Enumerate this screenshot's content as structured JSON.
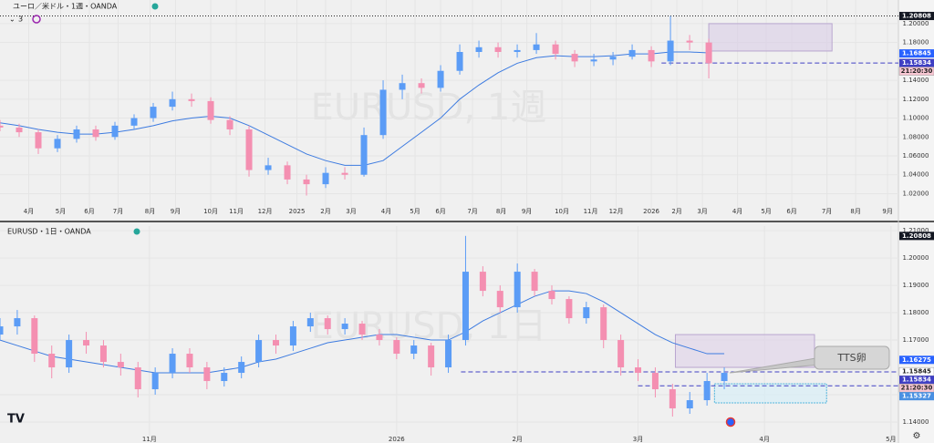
{
  "chart_data": [
    {
      "type": "candlestick",
      "title": "ユーロ／米ドル・1週・OANDA",
      "subtitle": "3",
      "watermark": "EURUSD, 1週",
      "up_color": "#5b9cf6",
      "down_color": "#f48fb1",
      "x": [
        0,
        3,
        6,
        9,
        12,
        15,
        18,
        21,
        24,
        27,
        30,
        33,
        36,
        39,
        42,
        45,
        48,
        51,
        54,
        57,
        60,
        63,
        66,
        69,
        72,
        75,
        78,
        81,
        84,
        87,
        90,
        93,
        96,
        99,
        102,
        105,
        108,
        111
      ],
      "ohlc": [
        [
          1.092,
          1.098,
          1.086,
          1.09
        ],
        [
          1.09,
          1.094,
          1.08,
          1.085
        ],
        [
          1.085,
          1.088,
          1.062,
          1.068
        ],
        [
          1.068,
          1.082,
          1.064,
          1.078
        ],
        [
          1.078,
          1.092,
          1.074,
          1.088
        ],
        [
          1.088,
          1.092,
          1.076,
          1.08
        ],
        [
          1.08,
          1.096,
          1.077,
          1.092
        ],
        [
          1.092,
          1.104,
          1.088,
          1.1
        ],
        [
          1.1,
          1.116,
          1.096,
          1.112
        ],
        [
          1.112,
          1.128,
          1.108,
          1.12
        ],
        [
          1.12,
          1.126,
          1.112,
          1.118
        ],
        [
          1.118,
          1.122,
          1.094,
          1.098
        ],
        [
          1.098,
          1.102,
          1.082,
          1.088
        ],
        [
          1.088,
          1.092,
          1.038,
          1.045
        ],
        [
          1.045,
          1.058,
          1.04,
          1.05
        ],
        [
          1.05,
          1.054,
          1.03,
          1.035
        ],
        [
          1.035,
          1.04,
          1.018,
          1.03
        ],
        [
          1.03,
          1.048,
          1.026,
          1.042
        ],
        [
          1.042,
          1.048,
          1.035,
          1.04
        ],
        [
          1.04,
          1.09,
          1.038,
          1.082
        ],
        [
          1.082,
          1.14,
          1.078,
          1.13
        ],
        [
          1.13,
          1.146,
          1.12,
          1.137
        ],
        [
          1.137,
          1.142,
          1.126,
          1.132
        ],
        [
          1.132,
          1.156,
          1.128,
          1.15
        ],
        [
          1.15,
          1.178,
          1.146,
          1.17
        ],
        [
          1.17,
          1.182,
          1.164,
          1.175
        ],
        [
          1.175,
          1.18,
          1.164,
          1.17
        ],
        [
          1.17,
          1.178,
          1.164,
          1.172
        ],
        [
          1.172,
          1.19,
          1.168,
          1.178
        ],
        [
          1.178,
          1.182,
          1.162,
          1.168
        ],
        [
          1.168,
          1.172,
          1.154,
          1.16
        ],
        [
          1.16,
          1.168,
          1.155,
          1.162
        ],
        [
          1.162,
          1.17,
          1.156,
          1.165
        ],
        [
          1.165,
          1.178,
          1.162,
          1.172
        ],
        [
          1.172,
          1.176,
          1.154,
          1.16
        ],
        [
          1.16,
          1.2081,
          1.156,
          1.182
        ],
        [
          1.182,
          1.188,
          1.172,
          1.18
        ],
        [
          1.18,
          1.184,
          1.142,
          1.158
        ]
      ],
      "ma": {
        "color": "#3d7be0",
        "values": [
          1.095,
          1.092,
          1.088,
          1.085,
          1.083,
          1.083,
          1.085,
          1.088,
          1.092,
          1.097,
          1.1,
          1.102,
          1.1,
          1.092,
          1.082,
          1.072,
          1.062,
          1.055,
          1.05,
          1.05,
          1.055,
          1.07,
          1.085,
          1.1,
          1.12,
          1.135,
          1.148,
          1.158,
          1.164,
          1.166,
          1.165,
          1.165,
          1.166,
          1.168,
          1.168,
          1.17,
          1.17,
          1.169
        ]
      },
      "xlim": [
        0,
        140.7
      ],
      "xticks": [
        {
          "value": 4.5,
          "label": "4月"
        },
        {
          "value": 9.5,
          "label": "5月"
        },
        {
          "value": 14,
          "label": "6月"
        },
        {
          "value": 18.5,
          "label": "7月"
        },
        {
          "value": 23.5,
          "label": "8月"
        },
        {
          "value": 27.5,
          "label": "9月"
        },
        {
          "value": 33,
          "label": "10月"
        },
        {
          "value": 37,
          "label": "11月"
        },
        {
          "value": 41.5,
          "label": "12月"
        },
        {
          "value": 46.5,
          "label": "2025"
        },
        {
          "value": 51,
          "label": "2月"
        },
        {
          "value": 55,
          "label": "3月"
        },
        {
          "value": 60.5,
          "label": "4月"
        },
        {
          "value": 65,
          "label": "5月"
        },
        {
          "value": 69,
          "label": "6月"
        },
        {
          "value": 74,
          "label": "7月"
        },
        {
          "value": 78.5,
          "label": "8月"
        },
        {
          "value": 82.5,
          "label": "9月"
        },
        {
          "value": 88,
          "label": "10月"
        },
        {
          "value": 92.5,
          "label": "11月"
        },
        {
          "value": 96.5,
          "label": "12月"
        },
        {
          "value": 102,
          "label": "2026"
        },
        {
          "value": 106,
          "label": "2月"
        },
        {
          "value": 110,
          "label": "3月"
        },
        {
          "value": 115.5,
          "label": "4月"
        },
        {
          "value": 120,
          "label": "5月"
        },
        {
          "value": 124,
          "label": "6月"
        },
        {
          "value": 129.5,
          "label": "7月"
        },
        {
          "value": 134,
          "label": "8月"
        },
        {
          "value": 139,
          "label": "9月"
        }
      ],
      "ylim": [
        1.005,
        1.225
      ],
      "yticks": [
        {
          "value": 1.2,
          "label": "1.20000"
        },
        {
          "value": 1.18,
          "label": "1.18000"
        },
        {
          "value": 1.14,
          "label": "1.14000"
        },
        {
          "value": 1.12,
          "label": "1.12000"
        },
        {
          "value": 1.1,
          "label": "1.10000"
        },
        {
          "value": 1.08,
          "label": "1.08000"
        },
        {
          "value": 1.06,
          "label": "1.06000"
        },
        {
          "value": 1.04,
          "label": "1.04000"
        },
        {
          "value": 1.02,
          "label": "1.02000"
        }
      ],
      "grid": true,
      "price_tags": [
        1.20808,
        1.16845,
        1.15834
      ],
      "price_tag_colors": [
        "#131722",
        "#2962ff",
        "#3f3fc4"
      ],
      "price_tag_lines": [
        "dotted",
        null,
        "dashed"
      ],
      "price_tag_line_from": [
        0,
        null,
        103.6
      ],
      "countdown": "21:20:30",
      "countdown_color": "#f7c6d2",
      "zones": [
        {
          "x": [
            111,
            130.3
          ],
          "y": [
            1.171,
            1.2
          ],
          "fill": "#d9cde6",
          "stroke": "#b9a6cf"
        }
      ]
    },
    {
      "type": "candlestick",
      "title": "EURUSD・1日・OANDA",
      "watermark": "EURUSD, 1日",
      "up_color": "#5b9cf6",
      "down_color": "#f48fb1",
      "x": [
        0,
        3,
        6,
        9,
        12,
        15,
        18,
        21,
        24,
        27,
        30,
        33,
        36,
        39,
        42,
        45,
        48,
        51,
        54,
        57,
        60,
        63,
        66,
        69,
        72,
        75,
        78,
        81,
        84,
        87,
        90,
        93,
        96,
        99,
        102,
        105,
        108,
        111,
        114,
        117,
        120,
        123,
        126
      ],
      "ohlc": [
        [
          1.172,
          1.178,
          1.17,
          1.175
        ],
        [
          1.175,
          1.181,
          1.172,
          1.178
        ],
        [
          1.178,
          1.179,
          1.162,
          1.165
        ],
        [
          1.165,
          1.168,
          1.156,
          1.16
        ],
        [
          1.16,
          1.172,
          1.158,
          1.17
        ],
        [
          1.17,
          1.173,
          1.165,
          1.168
        ],
        [
          1.168,
          1.17,
          1.16,
          1.162
        ],
        [
          1.162,
          1.165,
          1.157,
          1.16
        ],
        [
          1.16,
          1.162,
          1.149,
          1.152
        ],
        [
          1.152,
          1.16,
          1.15,
          1.158
        ],
        [
          1.158,
          1.167,
          1.156,
          1.165
        ],
        [
          1.165,
          1.167,
          1.158,
          1.16
        ],
        [
          1.16,
          1.162,
          1.152,
          1.155
        ],
        [
          1.155,
          1.16,
          1.153,
          1.158
        ],
        [
          1.158,
          1.164,
          1.156,
          1.162
        ],
        [
          1.162,
          1.172,
          1.16,
          1.17
        ],
        [
          1.17,
          1.172,
          1.165,
          1.168
        ],
        [
          1.168,
          1.177,
          1.166,
          1.175
        ],
        [
          1.175,
          1.18,
          1.173,
          1.178
        ],
        [
          1.178,
          1.179,
          1.172,
          1.174
        ],
        [
          1.174,
          1.178,
          1.172,
          1.176
        ],
        [
          1.176,
          1.177,
          1.17,
          1.172
        ],
        [
          1.172,
          1.174,
          1.168,
          1.17
        ],
        [
          1.17,
          1.171,
          1.163,
          1.165
        ],
        [
          1.165,
          1.17,
          1.163,
          1.168
        ],
        [
          1.168,
          1.169,
          1.157,
          1.16
        ],
        [
          1.16,
          1.172,
          1.158,
          1.17
        ],
        [
          1.17,
          1.2081,
          1.168,
          1.195
        ],
        [
          1.195,
          1.197,
          1.186,
          1.188
        ],
        [
          1.188,
          1.19,
          1.18,
          1.182
        ],
        [
          1.182,
          1.198,
          1.18,
          1.195
        ],
        [
          1.195,
          1.196,
          1.186,
          1.188
        ],
        [
          1.188,
          1.19,
          1.183,
          1.185
        ],
        [
          1.185,
          1.186,
          1.176,
          1.178
        ],
        [
          1.178,
          1.184,
          1.176,
          1.182
        ],
        [
          1.182,
          1.183,
          1.167,
          1.17
        ],
        [
          1.17,
          1.172,
          1.157,
          1.16
        ],
        [
          1.16,
          1.163,
          1.155,
          1.158
        ],
        [
          1.158,
          1.16,
          1.149,
          1.152
        ],
        [
          1.152,
          1.154,
          1.142,
          1.145
        ],
        [
          1.145,
          1.151,
          1.143,
          1.148
        ],
        [
          1.148,
          1.158,
          1.146,
          1.155
        ],
        [
          1.155,
          1.16,
          1.152,
          1.158
        ]
      ],
      "ma": {
        "color": "#3d7be0",
        "values": [
          1.17,
          1.168,
          1.166,
          1.164,
          1.163,
          1.162,
          1.161,
          1.16,
          1.159,
          1.158,
          1.158,
          1.158,
          1.158,
          1.159,
          1.16,
          1.162,
          1.163,
          1.165,
          1.167,
          1.169,
          1.17,
          1.171,
          1.172,
          1.172,
          1.171,
          1.17,
          1.17,
          1.173,
          1.177,
          1.18,
          1.183,
          1.186,
          1.188,
          1.188,
          1.187,
          1.184,
          1.18,
          1.176,
          1.172,
          1.169,
          1.167,
          1.165,
          1.165
        ]
      },
      "xlim": [
        0,
        156.3
      ],
      "xticks": [
        {
          "value": 26,
          "label": "11月"
        },
        {
          "value": 69,
          "label": "2026"
        },
        {
          "value": 90,
          "label": "2月"
        },
        {
          "value": 111,
          "label": "3月"
        },
        {
          "value": 133,
          "label": "4月"
        },
        {
          "value": 155,
          "label": "5月"
        }
      ],
      "ylim": [
        1.135,
        1.2117
      ],
      "yticks": [
        {
          "value": 1.21,
          "label": "1.21000"
        },
        {
          "value": 1.2,
          "label": "1.20000"
        },
        {
          "value": 1.19,
          "label": "1.19000"
        },
        {
          "value": 1.18,
          "label": "1.18000"
        },
        {
          "value": 1.17,
          "label": "1.17000"
        },
        {
          "value": 1.15,
          "label": "1.15000"
        },
        {
          "value": 1.14,
          "label": "1.14000"
        }
      ],
      "grid": true,
      "price_tags": [
        1.20808,
        1.16275,
        1.15845,
        1.15834,
        1.15327
      ],
      "price_tag_colors": [
        "#131722",
        "#2962ff",
        "#ffffff",
        "#3f3fc4",
        "#4a90e2"
      ],
      "price_tag_lines": [
        null,
        null,
        null,
        "dashed",
        "dashed"
      ],
      "price_tag_line_from": [
        null,
        null,
        null,
        80.2,
        111
      ],
      "countdown": "21:20:30",
      "countdown_color": "#f7c6d2",
      "zones": [
        {
          "x": [
            117.5,
            141.7
          ],
          "y": [
            1.16,
            1.172
          ],
          "fill": "#ddd0e8",
          "stroke": "#b9a6cf"
        },
        {
          "x": [
            124.3,
            143.8
          ],
          "y": [
            1.147,
            1.154
          ],
          "fill": "#d4eef8",
          "stroke": "#4fb4dc"
        }
      ],
      "annotation": "TTS卵"
    }
  ]
}
